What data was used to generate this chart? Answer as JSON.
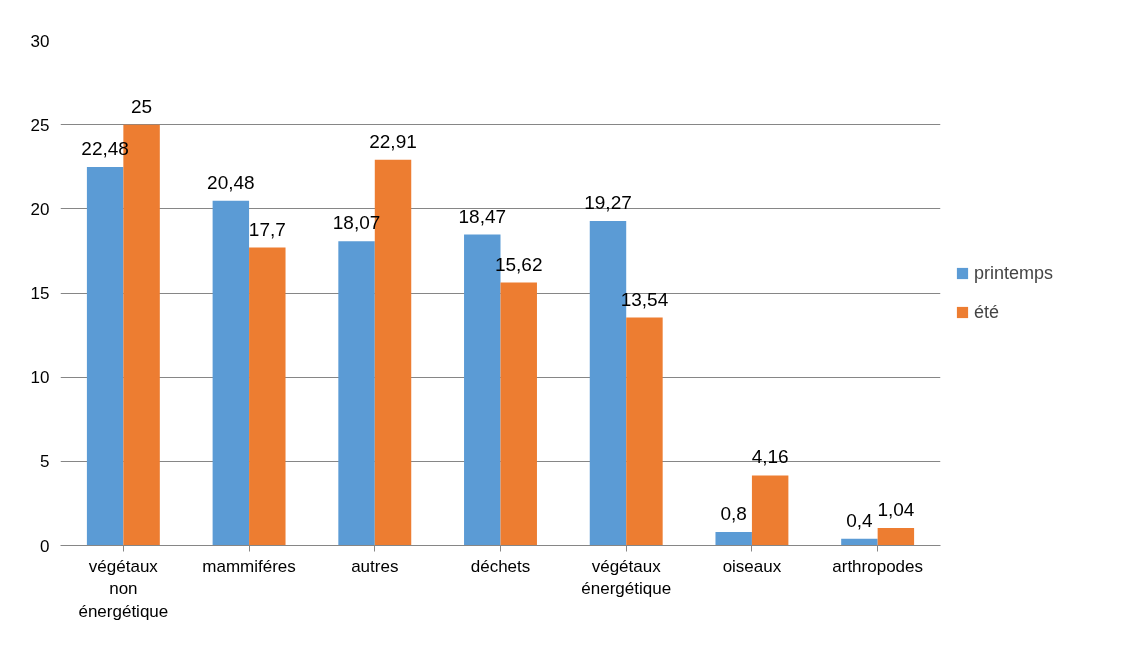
{
  "chart_data": {
    "type": "bar",
    "categories": [
      "végétaux non énergétique",
      "mammiféres",
      "autres",
      "déchets",
      "végétaux énergétique",
      "oiseaux",
      "arthropodes"
    ],
    "series": [
      {
        "name": "printemps",
        "color": "#5b9bd5",
        "values": [
          22.48,
          20.48,
          18.07,
          18.47,
          19.27,
          0.8,
          0.4
        ],
        "value_labels": [
          "22,48",
          "20,48",
          "18,07",
          "18,47",
          "19,27",
          "0,8",
          "0,4"
        ]
      },
      {
        "name": "été",
        "color": "#ed7d31",
        "values": [
          25,
          17.7,
          22.91,
          15.62,
          13.54,
          4.16,
          1.04
        ],
        "value_labels": [
          "25",
          "17,7",
          "22,91",
          "15,62",
          "13,54",
          "4,16",
          "1,04"
        ]
      }
    ],
    "ylim": [
      0,
      30
    ],
    "yticks": [
      0,
      5,
      10,
      15,
      20,
      25,
      30
    ],
    "grid": "y",
    "legend": "right"
  }
}
